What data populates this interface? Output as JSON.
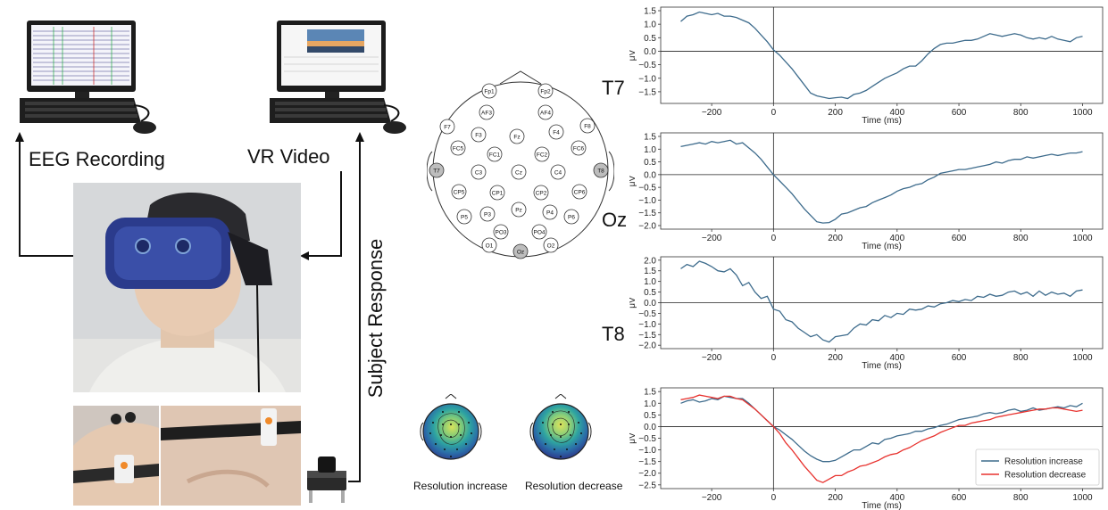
{
  "setup": {
    "eeg_label": "EEG Recording",
    "vr_label": "VR Video",
    "response_label": "Subject Response"
  },
  "montage": {
    "electrodes": [
      "Fp1",
      "Fp2",
      "AF3",
      "AF4",
      "F7",
      "F3",
      "Fz",
      "F4",
      "F8",
      "FC5",
      "FC1",
      "FC2",
      "FC6",
      "T7",
      "C3",
      "Cz",
      "C4",
      "T8",
      "CP5",
      "CP1",
      "CP2",
      "CP6",
      "P5",
      "P3",
      "Pz",
      "P4",
      "P6",
      "PO3",
      "PO4",
      "O1",
      "Oz",
      "O2"
    ],
    "highlighted": [
      "T7",
      "T8",
      "Oz"
    ]
  },
  "topomaps": {
    "left_label": "Resolution increase",
    "right_label": "Resolution decrease"
  },
  "colors": {
    "increase": "#3d6b8c",
    "decrease": "#e8322e",
    "highlight": "#bdbdbd"
  },
  "chart_data": [
    {
      "type": "line",
      "channel_label": "T7",
      "xlabel": "Time (ms)",
      "ylabel": "μV",
      "xlim": [
        -300,
        1000
      ],
      "ylim": [
        -1.8,
        1.5
      ],
      "xticks": [
        -200,
        0,
        200,
        400,
        600,
        800,
        1000
      ],
      "yticks": [
        -1.5,
        -1.0,
        -0.5,
        0.0,
        0.5,
        1.0,
        1.5
      ],
      "series": [
        {
          "x": [
            -300,
            -280,
            -260,
            -240,
            -220,
            -200,
            -180,
            -160,
            -140,
            -120,
            -100,
            -80,
            -60,
            -40,
            -20,
            0,
            20,
            40,
            60,
            80,
            100,
            120,
            140,
            160,
            180,
            200,
            220,
            240,
            260,
            280,
            300,
            320,
            340,
            360,
            380,
            400,
            420,
            440,
            460,
            480,
            500,
            520,
            540,
            560,
            580,
            600,
            620,
            640,
            660,
            680,
            700,
            720,
            740,
            760,
            780,
            800,
            820,
            840,
            860,
            880,
            900,
            920,
            940,
            960,
            980,
            1000
          ],
          "y": [
            1.1,
            1.3,
            1.35,
            1.45,
            1.4,
            1.35,
            1.4,
            1.3,
            1.3,
            1.25,
            1.15,
            1.05,
            0.85,
            0.6,
            0.35,
            0.05,
            -0.15,
            -0.4,
            -0.65,
            -0.95,
            -1.25,
            -1.55,
            -1.65,
            -1.7,
            -1.75,
            -1.72,
            -1.7,
            -1.75,
            -1.6,
            -1.55,
            -1.45,
            -1.3,
            -1.15,
            -1.0,
            -0.9,
            -0.8,
            -0.65,
            -0.55,
            -0.55,
            -0.35,
            -0.1,
            0.1,
            0.25,
            0.3,
            0.3,
            0.35,
            0.4,
            0.4,
            0.45,
            0.55,
            0.65,
            0.6,
            0.55,
            0.6,
            0.65,
            0.6,
            0.5,
            0.45,
            0.5,
            0.45,
            0.55,
            0.45,
            0.4,
            0.35,
            0.5,
            0.55
          ]
        }
      ]
    },
    {
      "type": "line",
      "channel_label": "Oz",
      "xlabel": "Time (ms)",
      "ylabel": "μV",
      "xlim": [
        -300,
        1000
      ],
      "ylim": [
        -2.0,
        1.5
      ],
      "xticks": [
        -200,
        0,
        200,
        400,
        600,
        800,
        1000
      ],
      "yticks": [
        -2.0,
        -1.5,
        -1.0,
        -0.5,
        0.0,
        0.5,
        1.0,
        1.5
      ],
      "series": [
        {
          "x": [
            -300,
            -280,
            -260,
            -240,
            -220,
            -200,
            -180,
            -160,
            -140,
            -120,
            -100,
            -80,
            -60,
            -40,
            -20,
            0,
            20,
            40,
            60,
            80,
            100,
            120,
            140,
            160,
            180,
            200,
            220,
            240,
            260,
            280,
            300,
            320,
            340,
            360,
            380,
            400,
            420,
            440,
            460,
            480,
            500,
            520,
            540,
            560,
            580,
            600,
            620,
            640,
            660,
            680,
            700,
            720,
            740,
            760,
            780,
            800,
            820,
            840,
            860,
            880,
            900,
            920,
            940,
            960,
            980,
            1000
          ],
          "y": [
            1.1,
            1.15,
            1.2,
            1.25,
            1.2,
            1.3,
            1.25,
            1.3,
            1.35,
            1.2,
            1.25,
            1.05,
            0.85,
            0.6,
            0.3,
            0.0,
            -0.25,
            -0.5,
            -0.75,
            -1.05,
            -1.35,
            -1.6,
            -1.85,
            -1.9,
            -1.88,
            -1.75,
            -1.55,
            -1.5,
            -1.4,
            -1.3,
            -1.25,
            -1.1,
            -1.0,
            -0.9,
            -0.8,
            -0.65,
            -0.55,
            -0.5,
            -0.4,
            -0.35,
            -0.2,
            -0.1,
            0.05,
            0.1,
            0.15,
            0.2,
            0.2,
            0.25,
            0.3,
            0.35,
            0.4,
            0.5,
            0.45,
            0.55,
            0.6,
            0.6,
            0.7,
            0.65,
            0.7,
            0.75,
            0.8,
            0.75,
            0.8,
            0.85,
            0.85,
            0.9
          ]
        }
      ]
    },
    {
      "type": "line",
      "channel_label": "T8",
      "xlabel": "Time (ms)",
      "ylabel": "μV",
      "xlim": [
        -300,
        1000
      ],
      "ylim": [
        -2.0,
        2.0
      ],
      "xticks": [
        -200,
        0,
        200,
        400,
        600,
        800,
        1000
      ],
      "yticks": [
        -2.0,
        -1.5,
        -1.0,
        -0.5,
        0.0,
        0.5,
        1.0,
        1.5,
        2.0
      ],
      "series": [
        {
          "x": [
            -300,
            -280,
            -260,
            -240,
            -220,
            -200,
            -180,
            -160,
            -140,
            -120,
            -100,
            -80,
            -60,
            -40,
            -20,
            0,
            20,
            40,
            60,
            80,
            100,
            120,
            140,
            160,
            180,
            200,
            220,
            240,
            260,
            280,
            300,
            320,
            340,
            360,
            380,
            400,
            420,
            440,
            460,
            480,
            500,
            520,
            540,
            560,
            580,
            600,
            620,
            640,
            660,
            680,
            700,
            720,
            740,
            760,
            780,
            800,
            820,
            840,
            860,
            880,
            900,
            920,
            940,
            960,
            980,
            1000
          ],
          "y": [
            1.6,
            1.8,
            1.7,
            1.95,
            1.85,
            1.7,
            1.5,
            1.45,
            1.6,
            1.3,
            0.8,
            0.95,
            0.5,
            0.2,
            0.3,
            -0.3,
            -0.4,
            -0.8,
            -0.9,
            -1.2,
            -1.4,
            -1.6,
            -1.5,
            -1.75,
            -1.85,
            -1.6,
            -1.55,
            -1.5,
            -1.2,
            -1.0,
            -1.05,
            -0.8,
            -0.85,
            -0.6,
            -0.7,
            -0.5,
            -0.55,
            -0.3,
            -0.35,
            -0.3,
            -0.15,
            -0.2,
            -0.05,
            0.0,
            0.1,
            0.05,
            0.15,
            0.1,
            0.3,
            0.25,
            0.4,
            0.3,
            0.35,
            0.5,
            0.55,
            0.4,
            0.5,
            0.3,
            0.55,
            0.35,
            0.5,
            0.4,
            0.45,
            0.3,
            0.55,
            0.6
          ]
        }
      ]
    },
    {
      "type": "line",
      "xlabel": "Time (ms)",
      "ylabel": "μV",
      "xlim": [
        -300,
        1000
      ],
      "ylim": [
        -2.5,
        1.5
      ],
      "xticks": [
        -200,
        0,
        200,
        400,
        600,
        800,
        1000
      ],
      "yticks": [
        -2.5,
        -2.0,
        -1.5,
        -1.0,
        -0.5,
        0.0,
        0.5,
        1.0,
        1.5
      ],
      "legend_position": "bottom-right",
      "series": [
        {
          "name": "Resolution increase",
          "x": [
            -300,
            -280,
            -260,
            -240,
            -220,
            -200,
            -180,
            -160,
            -140,
            -120,
            -100,
            -80,
            -60,
            -40,
            -20,
            0,
            20,
            40,
            60,
            80,
            100,
            120,
            140,
            160,
            180,
            200,
            220,
            240,
            260,
            280,
            300,
            320,
            340,
            360,
            380,
            400,
            420,
            440,
            460,
            480,
            500,
            520,
            540,
            560,
            580,
            600,
            620,
            640,
            660,
            680,
            700,
            720,
            740,
            760,
            780,
            800,
            820,
            840,
            860,
            880,
            900,
            920,
            940,
            960,
            980,
            1000
          ],
          "y": [
            1.0,
            1.1,
            1.15,
            1.05,
            1.1,
            1.2,
            1.15,
            1.3,
            1.25,
            1.2,
            1.2,
            1.0,
            0.75,
            0.5,
            0.25,
            0.0,
            -0.15,
            -0.35,
            -0.55,
            -0.8,
            -1.05,
            -1.25,
            -1.4,
            -1.5,
            -1.5,
            -1.45,
            -1.3,
            -1.15,
            -1.0,
            -1.0,
            -0.85,
            -0.7,
            -0.75,
            -0.55,
            -0.5,
            -0.4,
            -0.35,
            -0.3,
            -0.2,
            -0.2,
            -0.1,
            -0.05,
            0.05,
            0.1,
            0.2,
            0.3,
            0.35,
            0.4,
            0.45,
            0.55,
            0.6,
            0.55,
            0.6,
            0.7,
            0.75,
            0.65,
            0.7,
            0.8,
            0.7,
            0.75,
            0.8,
            0.85,
            0.8,
            0.9,
            0.85,
            1.0
          ]
        },
        {
          "name": "Resolution decrease",
          "x": [
            -300,
            -280,
            -260,
            -240,
            -220,
            -200,
            -180,
            -160,
            -140,
            -120,
            -100,
            -80,
            -60,
            -40,
            -20,
            0,
            20,
            40,
            60,
            80,
            100,
            120,
            140,
            160,
            180,
            200,
            220,
            240,
            260,
            280,
            300,
            320,
            340,
            360,
            380,
            400,
            420,
            440,
            460,
            480,
            500,
            520,
            540,
            560,
            580,
            600,
            620,
            640,
            660,
            680,
            700,
            720,
            740,
            760,
            780,
            800,
            820,
            840,
            860,
            880,
            900,
            920,
            940,
            960,
            980,
            1000
          ],
          "y": [
            1.15,
            1.2,
            1.25,
            1.35,
            1.3,
            1.25,
            1.2,
            1.3,
            1.3,
            1.2,
            1.15,
            0.95,
            0.75,
            0.5,
            0.25,
            0.0,
            -0.3,
            -0.7,
            -1.0,
            -1.35,
            -1.7,
            -2.0,
            -2.3,
            -2.4,
            -2.25,
            -2.1,
            -2.1,
            -1.95,
            -1.85,
            -1.7,
            -1.65,
            -1.55,
            -1.45,
            -1.3,
            -1.2,
            -1.15,
            -1.0,
            -0.9,
            -0.75,
            -0.6,
            -0.5,
            -0.4,
            -0.25,
            -0.15,
            -0.05,
            0.05,
            0.05,
            0.15,
            0.2,
            0.25,
            0.3,
            0.4,
            0.45,
            0.5,
            0.55,
            0.6,
            0.65,
            0.7,
            0.75,
            0.75,
            0.8,
            0.8,
            0.75,
            0.7,
            0.65,
            0.7
          ]
        }
      ]
    }
  ]
}
